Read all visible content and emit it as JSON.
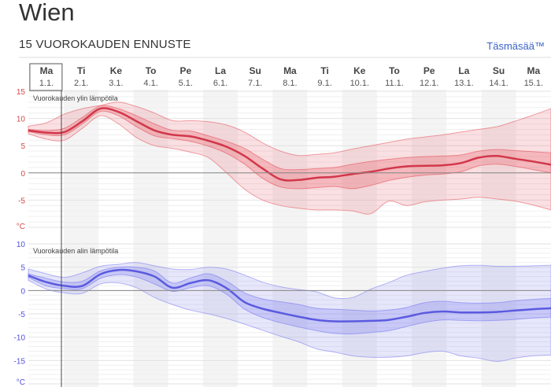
{
  "header": {
    "city": "Wien",
    "subtitle": "15 VUOROKAUDEN ENNUSTE",
    "accuracy_link": "Täsmäsää™"
  },
  "colors": {
    "max_line": "#d2374a",
    "max_band": "#e5545e",
    "min_line": "#5a5ae0",
    "min_band": "#7a7af0",
    "max_ticks": "#d24a4a",
    "min_ticks": "#5050e0"
  },
  "days": [
    {
      "day": "Ma",
      "date": "1.1."
    },
    {
      "day": "Ti",
      "date": "2.1."
    },
    {
      "day": "Ke",
      "date": "3.1."
    },
    {
      "day": "To",
      "date": "4.1."
    },
    {
      "day": "Pe",
      "date": "5.1."
    },
    {
      "day": "La",
      "date": "6.1."
    },
    {
      "day": "Su",
      "date": "7.1."
    },
    {
      "day": "Ma",
      "date": "8.1."
    },
    {
      "day": "Ti",
      "date": "9.1."
    },
    {
      "day": "Ke",
      "date": "10.1."
    },
    {
      "day": "To",
      "date": "11.1."
    },
    {
      "day": "Pe",
      "date": "12.1."
    },
    {
      "day": "La",
      "date": "13.1."
    },
    {
      "day": "Su",
      "date": "14.1."
    },
    {
      "day": "Ma",
      "date": "15.1."
    }
  ],
  "chart_data": [
    {
      "type": "area",
      "title": "Vuorokauden ylin lämpötila",
      "unit": "°C",
      "ylim": [
        -10,
        15
      ],
      "yticks": [
        15,
        10,
        5,
        0,
        -5
      ],
      "x": [
        0.0,
        0.5,
        1.0,
        1.5,
        2.0,
        2.5,
        3.0,
        3.5,
        4.0,
        4.5,
        5.0,
        5.5,
        6.0,
        6.5,
        7.0,
        7.5,
        8.0,
        8.5,
        9.0,
        9.5,
        10.0,
        10.5,
        11.0,
        11.5,
        12.0,
        12.5,
        13.0,
        13.5,
        14.0,
        14.5
      ],
      "series": [
        {
          "name": "median",
          "values": [
            7.8,
            7.4,
            7.5,
            9.5,
            11.8,
            11.2,
            9.5,
            7.8,
            7.0,
            6.7,
            5.9,
            4.8,
            3.1,
            0.8,
            -1.2,
            -1.3,
            -0.9,
            -0.7,
            -0.2,
            0.2,
            0.8,
            1.2,
            1.3,
            1.4,
            1.8,
            2.8,
            3.1,
            2.6,
            2.1,
            1.5
          ]
        },
        {
          "name": "inner-low",
          "values": [
            7.6,
            7.0,
            7.0,
            9.0,
            11.3,
            10.5,
            8.5,
            6.8,
            6.3,
            5.8,
            4.9,
            3.6,
            1.6,
            -1.0,
            -2.6,
            -2.9,
            -2.7,
            -2.5,
            -2.9,
            -2.3,
            -1.4,
            -0.8,
            -0.4,
            -0.2,
            0.2,
            1.3,
            1.6,
            1.2,
            0.6,
            0.0
          ]
        },
        {
          "name": "inner-high",
          "values": [
            8.0,
            7.8,
            8.2,
            10.2,
            12.3,
            11.8,
            10.5,
            9.0,
            7.8,
            7.7,
            6.8,
            5.8,
            4.5,
            2.5,
            0.8,
            0.6,
            0.8,
            1.0,
            1.6,
            2.1,
            2.5,
            2.8,
            3.0,
            3.1,
            3.3,
            4.0,
            4.3,
            4.1,
            3.9,
            3.7
          ]
        },
        {
          "name": "outer-low",
          "values": [
            7.2,
            6.2,
            6.0,
            8.2,
            10.5,
            9.0,
            6.5,
            5.0,
            4.5,
            3.8,
            2.8,
            0.0,
            -3.0,
            -5.0,
            -6.0,
            -6.5,
            -6.8,
            -6.8,
            -7.0,
            -7.5,
            -5.2,
            -6.0,
            -5.3,
            -5.0,
            -4.8,
            -4.5,
            -4.8,
            -5.2,
            -5.9,
            -6.8
          ]
        },
        {
          "name": "outer-high",
          "values": [
            8.6,
            9.2,
            10.8,
            11.8,
            12.4,
            13.0,
            12.2,
            11.0,
            9.6,
            9.6,
            9.4,
            8.8,
            7.5,
            5.5,
            4.0,
            3.2,
            3.4,
            3.7,
            4.4,
            5.0,
            5.6,
            6.2,
            6.6,
            7.0,
            7.5,
            8.0,
            8.5,
            9.5,
            10.6,
            11.8
          ]
        }
      ]
    },
    {
      "type": "area",
      "title": "Vuorokauden alin lämpötila",
      "unit": "°C",
      "ylim": [
        -20,
        10
      ],
      "yticks": [
        10,
        5,
        0,
        -5,
        -10,
        -15
      ],
      "x": [
        0.0,
        0.5,
        1.0,
        1.5,
        2.0,
        2.5,
        3.0,
        3.5,
        4.0,
        4.5,
        5.0,
        5.5,
        6.0,
        6.5,
        7.0,
        7.5,
        8.0,
        8.5,
        9.0,
        9.5,
        10.0,
        10.5,
        11.0,
        11.5,
        12.0,
        12.5,
        13.0,
        13.5,
        14.0,
        14.5
      ],
      "series": [
        {
          "name": "median",
          "values": [
            3.2,
            1.8,
            1.0,
            1.0,
            3.5,
            4.4,
            4.1,
            3.0,
            0.6,
            1.6,
            2.2,
            0.5,
            -2.5,
            -3.9,
            -4.8,
            -5.6,
            -6.3,
            -6.6,
            -6.6,
            -6.5,
            -6.3,
            -5.6,
            -4.8,
            -4.5,
            -4.7,
            -4.7,
            -4.6,
            -4.3,
            -4.0,
            -3.8
          ]
        },
        {
          "name": "inner-low",
          "values": [
            2.8,
            1.0,
            0.4,
            0.4,
            2.6,
            3.4,
            2.9,
            1.4,
            -0.2,
            0.6,
            1.0,
            -0.8,
            -4.0,
            -5.8,
            -6.9,
            -7.8,
            -8.6,
            -9.2,
            -9.3,
            -9.0,
            -8.6,
            -7.7,
            -6.8,
            -6.3,
            -6.4,
            -6.5,
            -6.4,
            -6.2,
            -5.9,
            -5.7
          ]
        },
        {
          "name": "inner-high",
          "values": [
            3.6,
            2.6,
            1.8,
            2.0,
            4.2,
            5.0,
            5.0,
            4.2,
            1.6,
            2.7,
            3.6,
            2.0,
            -0.5,
            -1.8,
            -2.4,
            -3.0,
            -3.8,
            -4.0,
            -4.2,
            -4.4,
            -4.2,
            -3.6,
            -2.6,
            -2.3,
            -2.6,
            -2.7,
            -2.6,
            -2.2,
            -1.9,
            -1.7
          ]
        },
        {
          "name": "outer-low",
          "values": [
            2.2,
            0.3,
            -0.5,
            -0.6,
            1.4,
            1.6,
            0.6,
            -1.5,
            -3.0,
            -4.2,
            -5.0,
            -6.0,
            -7.2,
            -8.5,
            -9.8,
            -11.0,
            -12.5,
            -13.2,
            -14.0,
            -14.3,
            -14.3,
            -14.0,
            -13.3,
            -13.0,
            -14.0,
            -14.5,
            -15.2,
            -14.5,
            -14.0,
            -13.8
          ]
        },
        {
          "name": "outer-high",
          "values": [
            4.6,
            3.6,
            2.8,
            3.8,
            5.2,
            5.6,
            6.0,
            5.3,
            4.6,
            4.5,
            5.0,
            4.6,
            3.3,
            1.8,
            0.8,
            0.2,
            -0.3,
            -1.6,
            -1.5,
            0.3,
            1.7,
            3.3,
            4.1,
            4.8,
            5.3,
            5.4,
            5.2,
            5.2,
            5.3,
            5.4
          ]
        }
      ]
    }
  ]
}
